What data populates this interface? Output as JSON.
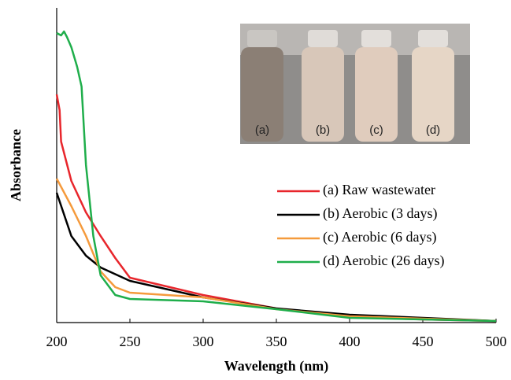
{
  "chart_data": {
    "type": "line",
    "xlabel": "Wavelength (nm)",
    "ylabel": "Absorbance",
    "xlim": [
      200,
      500
    ],
    "xticks": [
      200,
      250,
      300,
      350,
      400,
      450,
      500
    ],
    "ylim": [
      0,
      4
    ],
    "legend": "right",
    "inset_labels": [
      "(a)",
      "(b)",
      "(c)",
      "(d)"
    ],
    "series": [
      {
        "name": "(a) Raw wastewater",
        "color": "#e8262c",
        "x": [
          200,
          202,
          203,
          210,
          220,
          230,
          240,
          250,
          300,
          350,
          400,
          450,
          500
        ],
        "values": [
          2.9,
          2.7,
          2.3,
          1.8,
          1.4,
          1.1,
          0.82,
          0.57,
          0.35,
          0.18,
          0.07,
          0.04,
          0.02
        ]
      },
      {
        "name": "(b) Aerobic (3 days)",
        "color": "#000000",
        "x": [
          200,
          210,
          220,
          230,
          250,
          300,
          350,
          400,
          450,
          500
        ],
        "values": [
          1.65,
          1.1,
          0.85,
          0.7,
          0.53,
          0.32,
          0.18,
          0.1,
          0.06,
          0.02
        ]
      },
      {
        "name": "(c) Aerobic (6 days)",
        "color": "#f59a3c",
        "x": [
          200,
          210,
          220,
          230,
          240,
          250,
          300,
          350,
          400,
          450,
          500
        ],
        "values": [
          1.83,
          1.48,
          1.1,
          0.65,
          0.45,
          0.38,
          0.32,
          0.17,
          0.08,
          0.05,
          0.02
        ]
      },
      {
        "name": "(d) Aerobic (26 days)",
        "color": "#1fae4b",
        "x": [
          200,
          203,
          205,
          207,
          210,
          214,
          217,
          220,
          225,
          230,
          240,
          250,
          300,
          350,
          400,
          450,
          500
        ],
        "values": [
          3.68,
          3.65,
          3.7,
          3.63,
          3.5,
          3.25,
          3.0,
          2.0,
          1.1,
          0.6,
          0.35,
          0.3,
          0.27,
          0.17,
          0.06,
          0.04,
          0.02
        ]
      }
    ]
  }
}
